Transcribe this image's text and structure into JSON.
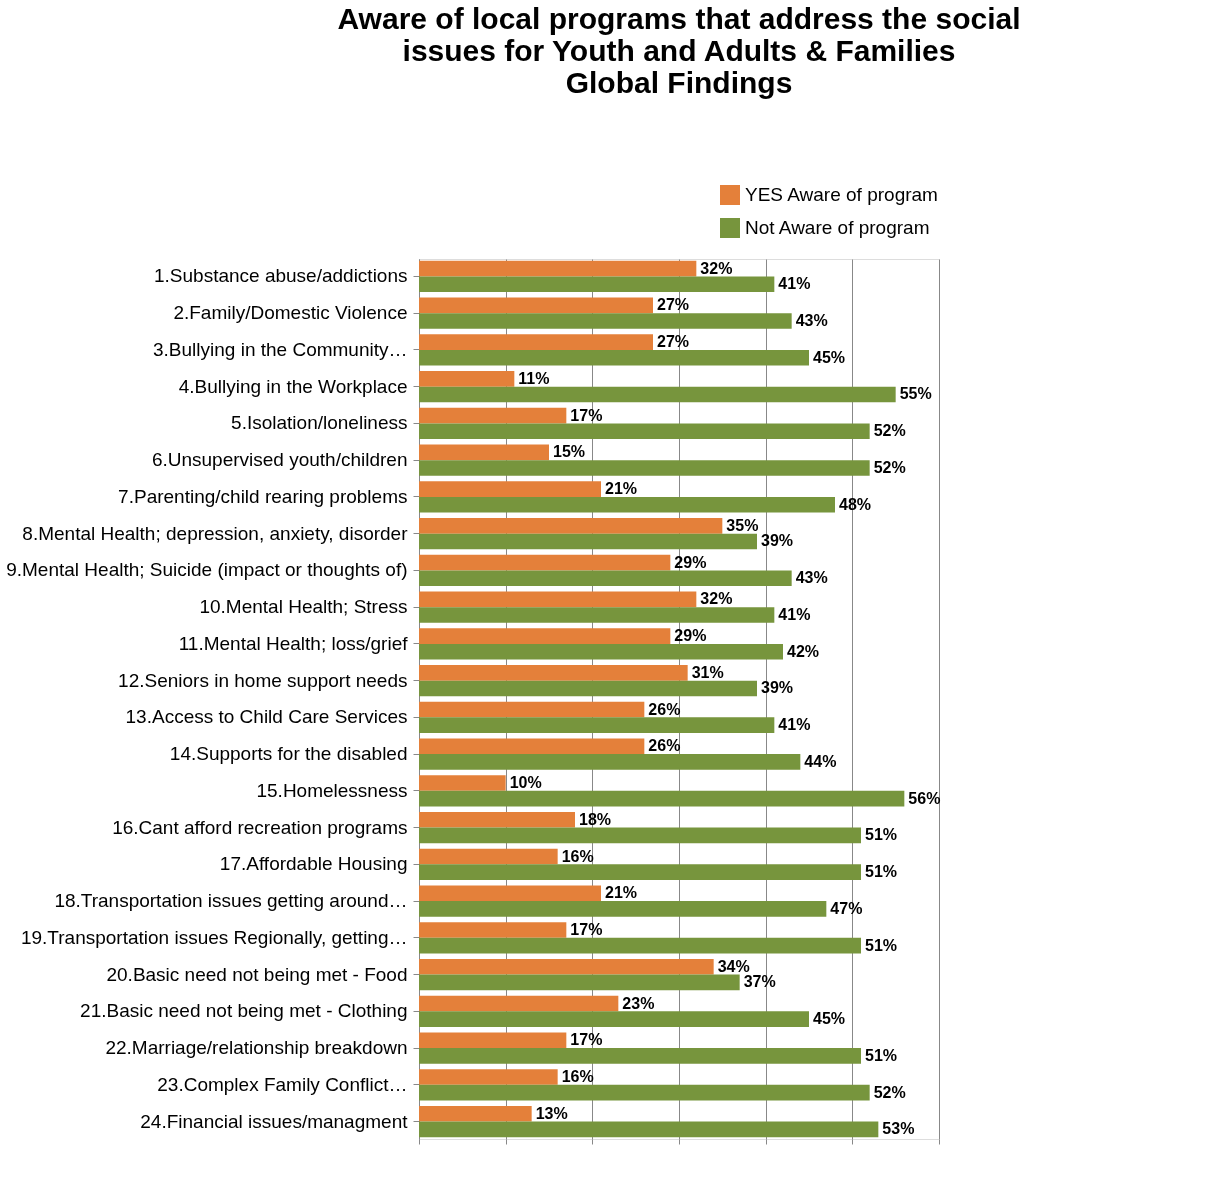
{
  "chart_data": {
    "type": "bar",
    "orientation": "horizontal",
    "title": [
      "Aware of local programs that address the social",
      "issues for Youth and Adults & Families",
      "Global Findings"
    ],
    "categories": [
      "1.Substance abuse/addictions",
      "2.Family/Domestic Violence",
      "3.Bullying in the Community…",
      "4.Bullying in the Workplace",
      "5.Isolation/loneliness",
      "6.Unsupervised youth/children",
      "7.Parenting/child rearing problems",
      "8.Mental Health; depression, anxiety, disorder",
      "9.Mental Health; Suicide (impact or thoughts of)",
      "10.Mental Health; Stress",
      "11.Mental Health; loss/grief",
      "12.Seniors in home support needs",
      "13.Access to Child Care Services",
      "14.Supports for the disabled",
      "15.Homelessness",
      "16.Cant afford recreation programs",
      "17.Affordable Housing",
      "18.Transportation issues getting around…",
      "19.Transportation issues Regionally, getting…",
      "20.Basic need not being met - Food",
      "21.Basic need not being met - Clothing",
      "22.Marriage/relationship breakdown",
      "23.Complex Family Conflict…",
      "24.Financial issues/managment"
    ],
    "series": [
      {
        "name": "YES Aware of program",
        "color": "#e4803a",
        "values": [
          32,
          27,
          27,
          11,
          17,
          15,
          21,
          35,
          29,
          32,
          29,
          31,
          26,
          26,
          10,
          18,
          16,
          21,
          17,
          34,
          23,
          17,
          16,
          13
        ],
        "value_labels": [
          "32%",
          "27%",
          "27%",
          "11%",
          "17%",
          "15%",
          "21%",
          "35%",
          "29%",
          "32%",
          "29%",
          "31%",
          "26%",
          "26%",
          "10%",
          "18%",
          "16%",
          "21%",
          "17%",
          "34%",
          "23%",
          "17%",
          "16%",
          "13%"
        ]
      },
      {
        "name": "Not Aware of program",
        "color": "#77953d",
        "values": [
          41,
          43,
          45,
          55,
          52,
          52,
          48,
          39,
          43,
          41,
          42,
          39,
          41,
          44,
          56,
          51,
          51,
          47,
          51,
          37,
          45,
          51,
          52,
          53
        ],
        "value_labels": [
          "41%",
          "43%",
          "45%",
          "55%",
          "52%",
          "52%",
          "48%",
          "39%",
          "43%",
          "41%",
          "42%",
          "39%",
          "41%",
          "44%",
          "56%",
          "51%",
          "51%",
          "47%",
          "51%",
          "37%",
          "45%",
          "51%",
          "52%",
          "53%"
        ]
      }
    ],
    "xlim": [
      0,
      60
    ],
    "xticks": [
      {
        "value": 0,
        "label": null
      },
      {
        "value": 10,
        "label": null
      },
      {
        "value": 20,
        "label": null
      },
      {
        "value": 30,
        "label": null
      },
      {
        "value": 40,
        "label": null
      },
      {
        "value": 50,
        "label": null
      },
      {
        "value": 60,
        "label": null
      }
    ],
    "grid": "x",
    "tick_labels": "y",
    "legend": "top right"
  }
}
